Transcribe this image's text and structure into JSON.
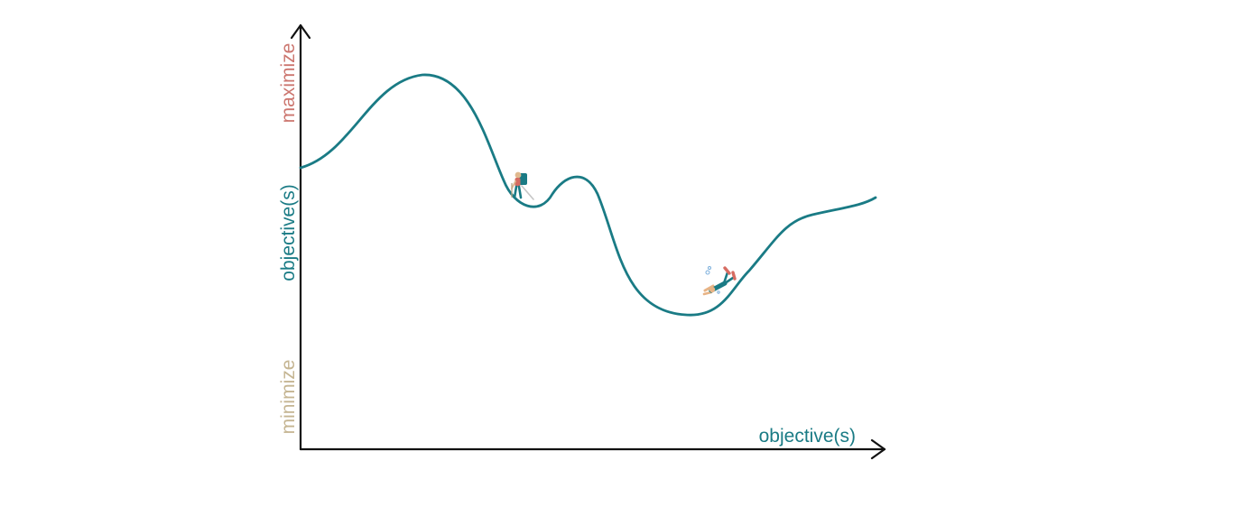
{
  "diagram": {
    "y_axis": {
      "top_label": "maximize",
      "middle_label": "objective(s)",
      "bottom_label": "minimize"
    },
    "x_axis": {
      "label": "objective(s)"
    },
    "figures": {
      "hiker_icon": "hiker-icon",
      "diver_icon": "diver-icon"
    },
    "colors": {
      "curve": "#1a7b85",
      "maximize": "#cc766f",
      "objective": "#1a7b85",
      "minimize": "#c5b592",
      "axis": "#111111"
    }
  }
}
